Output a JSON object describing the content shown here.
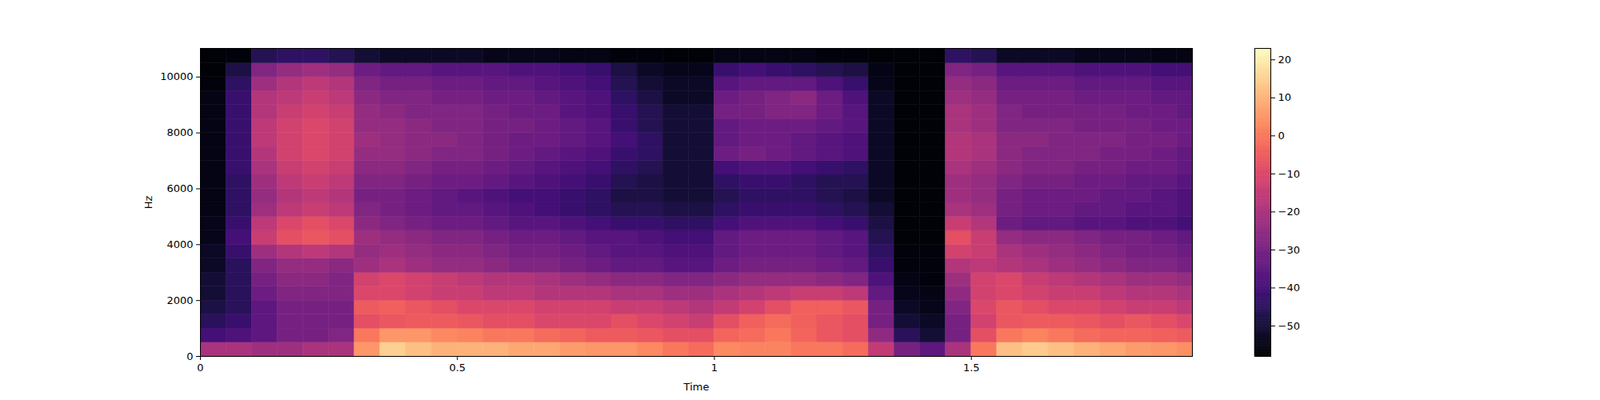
{
  "chart_data": {
    "type": "heatmap",
    "xlabel": "Time",
    "ylabel": "Hz",
    "color": "magma",
    "xlim": [
      0,
      1.93
    ],
    "ylim": [
      0,
      11025
    ],
    "xticks": [
      0,
      0.5,
      1,
      1.5
    ],
    "yticks": [
      0,
      2000,
      4000,
      6000,
      8000,
      10000
    ],
    "time_bins": [
      0,
      0.05,
      0.1,
      0.15,
      0.2,
      0.25,
      0.3,
      0.35,
      0.4,
      0.45,
      0.5,
      0.55,
      0.6,
      0.65,
      0.7,
      0.75,
      0.8,
      0.85,
      0.9,
      0.95,
      1,
      1.05,
      1.1,
      1.15,
      1.2,
      1.25,
      1.3,
      1.35,
      1.4,
      1.45,
      1.5,
      1.55,
      1.6,
      1.65,
      1.7,
      1.75,
      1.8,
      1.85,
      1.9,
      1.95
    ],
    "frequency_bins": [
      0,
      500,
      1000,
      1500,
      2000,
      2500,
      3000,
      3500,
      4000,
      4500,
      5000,
      5500,
      6000,
      6500,
      7000,
      7500,
      8000,
      8500,
      9000,
      9500,
      10000,
      10500,
      11025
    ],
    "cells": [
      [
        -20,
        -20,
        -22,
        -22,
        -20,
        -20,
        5,
        15,
        12,
        10,
        10,
        10,
        8,
        8,
        6,
        5,
        5,
        3,
        0,
        -2,
        3,
        2,
        2,
        0,
        0,
        -2,
        -15,
        -30,
        -35,
        -20,
        0,
        12,
        14,
        12,
        10,
        8,
        6,
        5,
        4
      ],
      [
        -40,
        -38,
        -35,
        -30,
        -30,
        -28,
        0,
        5,
        5,
        3,
        2,
        0,
        0,
        -2,
        -3,
        -5,
        -5,
        -6,
        -8,
        -8,
        -3,
        -2,
        0,
        -3,
        -6,
        -8,
        -25,
        -45,
        -50,
        -30,
        -8,
        0,
        2,
        0,
        -2,
        -3,
        -3,
        -4,
        -5
      ],
      [
        -45,
        -42,
        -35,
        -30,
        -30,
        -30,
        -8,
        -6,
        -5,
        -5,
        -6,
        -8,
        -8,
        -10,
        -10,
        -10,
        -8,
        -10,
        -12,
        -14,
        -8,
        -4,
        -2,
        -4,
        -6,
        -8,
        -30,
        -50,
        -52,
        -30,
        -12,
        -6,
        -5,
        -5,
        -6,
        -8,
        -6,
        -8,
        -10
      ],
      [
        -48,
        -45,
        -35,
        -30,
        -30,
        -30,
        -5,
        -4,
        -6,
        -8,
        -10,
        -10,
        -10,
        -12,
        -12,
        -12,
        -14,
        -14,
        -16,
        -18,
        -15,
        -12,
        -8,
        -4,
        -4,
        -6,
        -30,
        -52,
        -54,
        -28,
        -10,
        -6,
        -8,
        -10,
        -10,
        -12,
        -14,
        -14,
        -16
      ],
      [
        -50,
        -45,
        -32,
        -28,
        -28,
        -28,
        -10,
        -10,
        -12,
        -14,
        -14,
        -16,
        -16,
        -18,
        -18,
        -18,
        -20,
        -20,
        -22,
        -22,
        -20,
        -18,
        -16,
        -14,
        -14,
        -16,
        -34,
        -54,
        -55,
        -25,
        -12,
        -10,
        -12,
        -14,
        -14,
        -16,
        -18,
        -18,
        -20
      ],
      [
        -50,
        -45,
        -30,
        -26,
        -26,
        -28,
        -12,
        -10,
        -12,
        -14,
        -16,
        -18,
        -18,
        -20,
        -22,
        -24,
        -26,
        -26,
        -28,
        -28,
        -26,
        -24,
        -24,
        -24,
        -26,
        -28,
        -38,
        -55,
        -56,
        -22,
        -12,
        -10,
        -14,
        -16,
        -18,
        -20,
        -22,
        -22,
        -24
      ],
      [
        -52,
        -45,
        -28,
        -24,
        -24,
        -26,
        -22,
        -20,
        -22,
        -24,
        -24,
        -26,
        -28,
        -28,
        -30,
        -32,
        -34,
        -34,
        -36,
        -36,
        -32,
        -30,
        -30,
        -30,
        -32,
        -34,
        -42,
        -56,
        -56,
        -18,
        -16,
        -18,
        -20,
        -22,
        -24,
        -26,
        -28,
        -28,
        -30
      ],
      [
        -52,
        -42,
        -22,
        -18,
        -16,
        -18,
        -24,
        -22,
        -24,
        -26,
        -26,
        -28,
        -30,
        -30,
        -32,
        -34,
        -36,
        -36,
        -38,
        -38,
        -34,
        -32,
        -32,
        -32,
        -34,
        -36,
        -44,
        -56,
        -56,
        -12,
        -14,
        -20,
        -22,
        -24,
        -26,
        -28,
        -30,
        -30,
        -32
      ],
      [
        -54,
        -40,
        -14,
        -8,
        -6,
        -8,
        -22,
        -24,
        -26,
        -28,
        -28,
        -30,
        -32,
        -32,
        -34,
        -36,
        -36,
        -38,
        -40,
        -40,
        -34,
        -32,
        -32,
        -32,
        -34,
        -36,
        -46,
        -57,
        -57,
        -8,
        -14,
        -24,
        -26,
        -26,
        -28,
        -30,
        -30,
        -32,
        -34
      ],
      [
        -54,
        -42,
        -16,
        -10,
        -8,
        -10,
        -26,
        -28,
        -30,
        -32,
        -32,
        -34,
        -36,
        -36,
        -38,
        -40,
        -42,
        -42,
        -44,
        -44,
        -40,
        -38,
        -38,
        -38,
        -40,
        -42,
        -48,
        -57,
        -57,
        -14,
        -18,
        -32,
        -34,
        -34,
        -36,
        -36,
        -38,
        -38,
        -40
      ],
      [
        -55,
        -44,
        -22,
        -16,
        -14,
        -16,
        -28,
        -30,
        -32,
        -34,
        -34,
        -36,
        -38,
        -40,
        -42,
        -44,
        -46,
        -46,
        -48,
        -48,
        -44,
        -42,
        -42,
        -42,
        -44,
        -46,
        -50,
        -57,
        -57,
        -20,
        -22,
        -30,
        -32,
        -32,
        -34,
        -34,
        -36,
        -36,
        -38
      ],
      [
        -55,
        -44,
        -24,
        -18,
        -16,
        -18,
        -30,
        -30,
        -32,
        -34,
        -36,
        -38,
        -40,
        -40,
        -42,
        -44,
        -48,
        -48,
        -50,
        -50,
        -46,
        -44,
        -44,
        -44,
        -46,
        -48,
        -52,
        -57,
        -57,
        -22,
        -24,
        -30,
        -32,
        -32,
        -32,
        -34,
        -34,
        -36,
        -38
      ],
      [
        -55,
        -44,
        -22,
        -16,
        -14,
        -16,
        -28,
        -28,
        -30,
        -32,
        -32,
        -34,
        -36,
        -38,
        -40,
        -42,
        -46,
        -48,
        -50,
        -50,
        -44,
        -42,
        -42,
        -44,
        -46,
        -46,
        -52,
        -57,
        -57,
        -22,
        -24,
        -28,
        -30,
        -30,
        -32,
        -32,
        -34,
        -34,
        -36
      ],
      [
        -55,
        -42,
        -20,
        -14,
        -12,
        -14,
        -26,
        -26,
        -28,
        -30,
        -30,
        -32,
        -34,
        -36,
        -38,
        -40,
        -44,
        -46,
        -50,
        -50,
        -40,
        -38,
        -38,
        -40,
        -42,
        -44,
        -52,
        -57,
        -57,
        -20,
        -22,
        -26,
        -28,
        -28,
        -30,
        -30,
        -32,
        -32,
        -34
      ],
      [
        -55,
        -42,
        -18,
        -12,
        -10,
        -12,
        -24,
        -24,
        -26,
        -28,
        -28,
        -30,
        -32,
        -34,
        -36,
        -38,
        -42,
        -44,
        -50,
        -50,
        -32,
        -30,
        -32,
        -34,
        -36,
        -38,
        -52,
        -57,
        -57,
        -18,
        -20,
        -26,
        -28,
        -28,
        -28,
        -30,
        -30,
        -32,
        -34
      ],
      [
        -55,
        -42,
        -16,
        -12,
        -10,
        -12,
        -22,
        -24,
        -26,
        -26,
        -28,
        -30,
        -32,
        -32,
        -34,
        -36,
        -40,
        -44,
        -50,
        -50,
        -34,
        -32,
        -32,
        -34,
        -36,
        -38,
        -52,
        -57,
        -57,
        -18,
        -20,
        -26,
        -26,
        -28,
        -28,
        -28,
        -30,
        -30,
        -32
      ],
      [
        -55,
        -42,
        -16,
        -12,
        -10,
        -12,
        -24,
        -24,
        -26,
        -28,
        -28,
        -30,
        -30,
        -32,
        -34,
        -36,
        -42,
        -46,
        -50,
        -50,
        -34,
        -32,
        -32,
        -32,
        -34,
        -36,
        -52,
        -57,
        -57,
        -20,
        -22,
        -28,
        -28,
        -28,
        -30,
        -30,
        -30,
        -32,
        -32
      ],
      [
        -55,
        -42,
        -18,
        -14,
        -12,
        -14,
        -24,
        -26,
        -28,
        -28,
        -28,
        -30,
        -32,
        -32,
        -36,
        -38,
        -42,
        -46,
        -50,
        -50,
        -30,
        -30,
        -28,
        -28,
        -32,
        -36,
        -52,
        -57,
        -57,
        -20,
        -22,
        -28,
        -30,
        -30,
        -30,
        -30,
        -32,
        -32,
        -34
      ],
      [
        -55,
        -42,
        -18,
        -16,
        -14,
        -16,
        -26,
        -28,
        -28,
        -30,
        -30,
        -32,
        -32,
        -34,
        -36,
        -38,
        -44,
        -48,
        -52,
        -52,
        -32,
        -30,
        -28,
        -26,
        -32,
        -38,
        -52,
        -57,
        -57,
        -22,
        -24,
        -30,
        -30,
        -30,
        -32,
        -32,
        -32,
        -34,
        -34
      ],
      [
        -56,
        -44,
        -22,
        -18,
        -16,
        -18,
        -28,
        -30,
        -30,
        -32,
        -32,
        -34,
        -34,
        -36,
        -38,
        -40,
        -46,
        -50,
        -52,
        -52,
        -36,
        -34,
        -34,
        -34,
        -38,
        -42,
        -54,
        -57,
        -57,
        -24,
        -26,
        -32,
        -32,
        -32,
        -34,
        -34,
        -34,
        -36,
        -36
      ],
      [
        -57,
        -48,
        -28,
        -24,
        -22,
        -24,
        -32,
        -34,
        -34,
        -36,
        -36,
        -36,
        -38,
        -38,
        -40,
        -42,
        -48,
        -52,
        -54,
        -54,
        -42,
        -40,
        -42,
        -44,
        -46,
        -48,
        -55,
        -57,
        -57,
        -28,
        -30,
        -36,
        -36,
        -36,
        -38,
        -38,
        -38,
        -40,
        -40
      ],
      [
        -57,
        -56,
        -46,
        -44,
        -44,
        -46,
        -50,
        -52,
        -52,
        -52,
        -52,
        -54,
        -54,
        -54,
        -55,
        -55,
        -56,
        -56,
        -57,
        -57,
        -55,
        -55,
        -55,
        -55,
        -56,
        -56,
        -57,
        -57,
        -57,
        -44,
        -46,
        -52,
        -52,
        -52,
        -54,
        -54,
        -54,
        -55,
        -55
      ]
    ],
    "colorbar": {
      "range": [
        -58,
        23
      ],
      "ticks": [
        {
          "value": -50,
          "label": "−50"
        },
        {
          "value": -40,
          "label": "−40"
        },
        {
          "value": -30,
          "label": "−30"
        },
        {
          "value": -20,
          "label": "−20"
        },
        {
          "value": -10,
          "label": "−10"
        },
        {
          "value": 0,
          "label": "0"
        },
        {
          "value": 10,
          "label": "10"
        },
        {
          "value": 20,
          "label": "20"
        }
      ]
    }
  }
}
